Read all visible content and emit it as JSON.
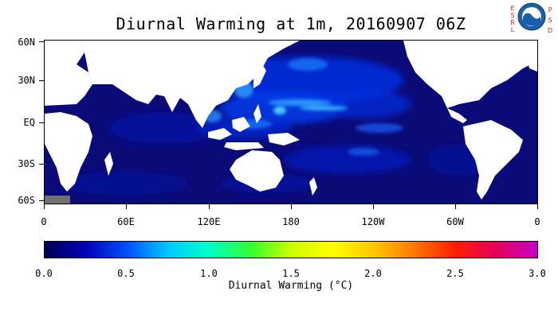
{
  "title": "Diurnal Warming at 1m, 20160907 06Z",
  "logo": {
    "left_text": "ESRL",
    "right_text": "PSD",
    "badge": "NOAA",
    "icon": "noaa-logo-icon"
  },
  "map": {
    "lat_labels": [
      "60N",
      "30N",
      "EQ",
      "30S",
      "60S"
    ],
    "lon_labels": [
      "0",
      "60E",
      "120E",
      "180",
      "120W",
      "60W",
      "0"
    ],
    "ocean_color": "#0a0a78",
    "land_color": "#ffffff",
    "missing_color": "#707070"
  },
  "colorbar": {
    "tick_labels": [
      "0.0",
      "0.5",
      "1.0",
      "1.5",
      "2.0",
      "2.5",
      "3.0"
    ],
    "title": "Diurnal Warming (°C)",
    "colors": [
      "#000050",
      "#0000b4",
      "#0050ff",
      "#00c8ff",
      "#00ffc8",
      "#32ff32",
      "#c8ff00",
      "#ffff00",
      "#ffc800",
      "#ff7800",
      "#ff1e00",
      "#e6005a",
      "#c800c8"
    ]
  }
}
